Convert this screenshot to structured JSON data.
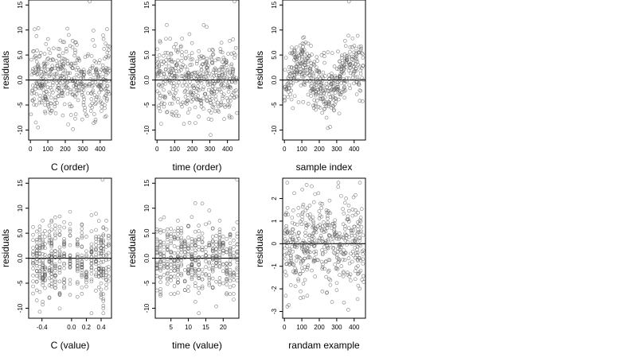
{
  "chart_data": [
    {
      "type": "scatter",
      "xlabel": "C (order)",
      "ylabel": "residuals",
      "xlim": [
        -10,
        465
      ],
      "ylim": [
        -12,
        16
      ],
      "xticks": [
        0,
        100,
        200,
        300,
        400
      ],
      "yticks": [
        -10,
        -5,
        0,
        5,
        10,
        15
      ],
      "ytick_labels": [
        "-10",
        "-5",
        "0.0",
        "5.0",
        "10",
        "15"
      ],
      "hline": 0,
      "pattern": "uniform",
      "n": 460,
      "range": [
        0,
        455
      ],
      "outlier": {
        "x": 340,
        "y": 15.7
      }
    },
    {
      "type": "scatter",
      "xlabel": "time (order)",
      "ylabel": "residuals",
      "xlim": [
        -10,
        465
      ],
      "ylim": [
        -12,
        16
      ],
      "xticks": [
        0,
        100,
        200,
        300,
        400
      ],
      "yticks": [
        -10,
        -5,
        0,
        5,
        10,
        15
      ],
      "ytick_labels": [
        "-10",
        "-5",
        "0.0",
        "5.0",
        "10",
        "15"
      ],
      "hline": 0,
      "pattern": "uniform",
      "n": 460,
      "range": [
        0,
        455
      ],
      "outlier": {
        "x": 440,
        "y": 15.7
      }
    },
    {
      "type": "scatter",
      "xlabel": "sample index",
      "ylabel": "residuals",
      "xlim": [
        -10,
        465
      ],
      "ylim": [
        -12,
        16
      ],
      "xticks": [
        0,
        100,
        200,
        300,
        400
      ],
      "yticks": [
        -10,
        -5,
        0,
        5,
        10,
        15
      ],
      "ytick_labels": [
        "-10",
        "-5",
        "0.0",
        "5.0",
        "10",
        "15"
      ],
      "hline": 0,
      "pattern": "wave",
      "n": 460,
      "range": [
        0,
        455
      ],
      "outlier": {
        "x": 370,
        "y": 15.7
      }
    },
    {
      "type": "scatter",
      "xlabel": "C (value)",
      "ylabel": "residuals",
      "xlim": [
        -0.58,
        0.54
      ],
      "ylim": [
        -12,
        16
      ],
      "xticks": [
        -0.4,
        0.0,
        0.2,
        0.4
      ],
      "xtick_labels": [
        "-0.4",
        "0.0",
        "0.2",
        "0.4"
      ],
      "yticks": [
        -10,
        -5,
        0,
        5,
        10,
        15
      ],
      "ytick_labels": [
        "-10",
        "-5",
        "0.0",
        "5.0",
        "10",
        "15"
      ],
      "hline": 0,
      "pattern": "discrete",
      "n": 460,
      "x_levels": [
        -0.52,
        -0.47,
        -0.43,
        -0.39,
        -0.36,
        -0.3,
        -0.27,
        -0.22,
        -0.16,
        -0.1,
        -0.02,
        0.08,
        0.14,
        0.2,
        0.27,
        0.33,
        0.37,
        0.4,
        0.43,
        0.47,
        0.5
      ],
      "outlier": {
        "x": 0.42,
        "y": 15.7
      }
    },
    {
      "type": "scatter",
      "xlabel": "time (value)",
      "ylabel": "residuals",
      "xlim": [
        0.5,
        24.5
      ],
      "ylim": [
        -12,
        16
      ],
      "xticks": [
        5,
        10,
        15,
        20
      ],
      "yticks": [
        -10,
        -5,
        0,
        5,
        10,
        15
      ],
      "ytick_labels": [
        "-10",
        "-5",
        "0.0",
        "5.0",
        "10",
        "15"
      ],
      "hline": 0,
      "pattern": "discrete",
      "n": 460,
      "x_levels": [
        1,
        2,
        3,
        4,
        5,
        6,
        7,
        8,
        9,
        10,
        11,
        12,
        13,
        14,
        15,
        16,
        17,
        18,
        19,
        20,
        21,
        22,
        23,
        24
      ],
      "outlier": {
        "x": 24,
        "y": 15.7
      }
    },
    {
      "type": "scatter",
      "xlabel": "randam example",
      "ylabel": "residuals",
      "xlim": [
        -10,
        465
      ],
      "ylim": [
        -3.3,
        2.9
      ],
      "xticks": [
        0,
        100,
        200,
        300,
        400
      ],
      "yticks": [
        -3,
        -2,
        -1,
        0,
        1,
        2
      ],
      "ytick_labels": [
        "-3",
        "-2",
        "-1",
        "0",
        "1",
        "2"
      ],
      "hline": 0,
      "pattern": "normal",
      "n": 460,
      "range": [
        0,
        455
      ]
    }
  ]
}
